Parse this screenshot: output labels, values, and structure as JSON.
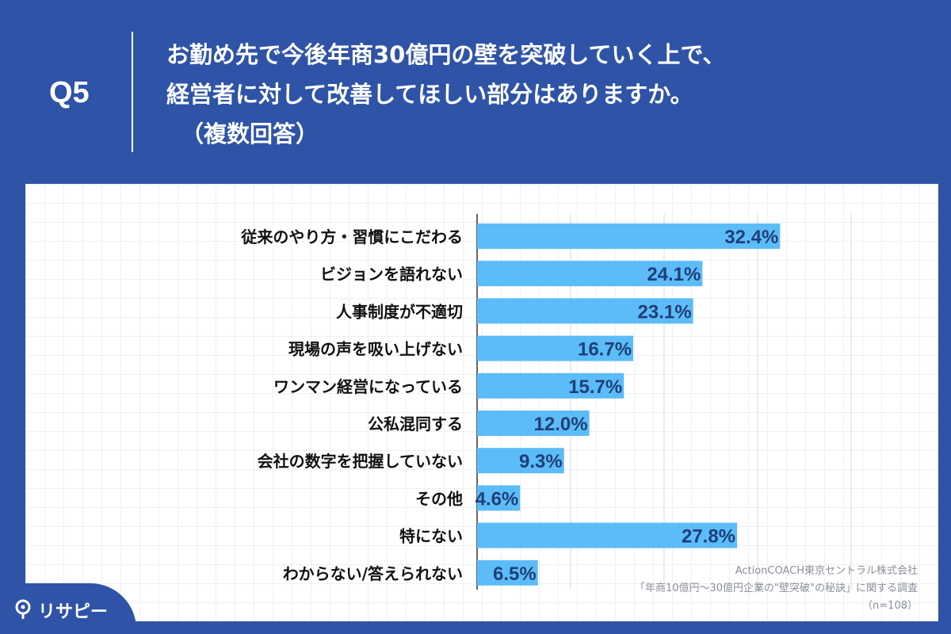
{
  "header": {
    "question_label": "Q5",
    "question_line1": "お勤め先で今後年商30億円の壁を突破していく上で、",
    "question_line2": "経営者に対して改善してほしい部分はありますか。",
    "question_line3": "（複数回答）"
  },
  "colors": {
    "background": "#2f53a6",
    "bar": "#5bbcf8",
    "value_text": "#1f3f78",
    "label_text": "#111111"
  },
  "chart_data": {
    "type": "bar",
    "orientation": "horizontal",
    "categories": [
      "従来のやり方・習慣にこだわる",
      "ビジョンを語れない",
      "人事制度が不適切",
      "現場の声を吸い上げない",
      "ワンマン経営になっている",
      "公私混同する",
      "会社の数字を把握していない",
      "その他",
      "特にない",
      "わからない/答えられない"
    ],
    "values": [
      32.4,
      24.1,
      23.1,
      16.7,
      15.7,
      12.0,
      9.3,
      4.6,
      27.8,
      6.5
    ],
    "value_labels": [
      "32.4%",
      "24.1%",
      "23.1%",
      "16.7%",
      "15.7%",
      "12.0%",
      "9.3%",
      "4.6%",
      "27.8%",
      "6.5%"
    ],
    "xlim": [
      0,
      40
    ],
    "grid": true,
    "title": "",
    "xlabel": "",
    "ylabel": ""
  },
  "source": {
    "line1": "ActionCOACH東京セントラル株式会社",
    "line2": "「年商10億円～30億円企業の\"壁突破\"の秘訣」に関する調査",
    "line3": "（n=108）"
  },
  "brand": {
    "name": "リサピー",
    "icon": "pin-icon"
  }
}
